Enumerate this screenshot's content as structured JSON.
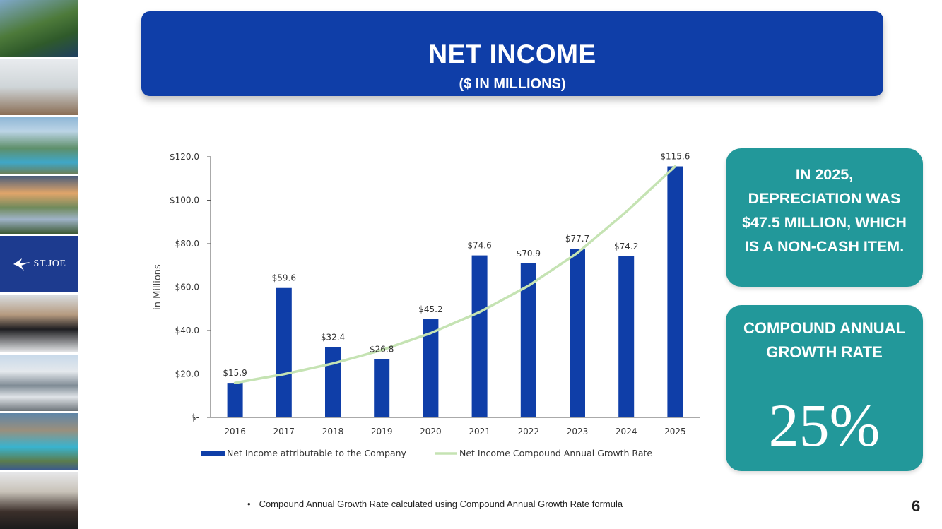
{
  "header": {
    "title": "NET INCOME",
    "subtitle": "($ IN MILLIONS)"
  },
  "logo": {
    "text": "ST.JOE"
  },
  "chart_data": {
    "type": "bar",
    "categories": [
      "2016",
      "2017",
      "2018",
      "2019",
      "2020",
      "2021",
      "2022",
      "2023",
      "2024",
      "2025"
    ],
    "series": [
      {
        "name": "Net Income attributable to the Company",
        "type": "bar",
        "color": "#0f3ea8",
        "values": [
          15.9,
          59.6,
          32.4,
          26.8,
          45.2,
          74.6,
          70.9,
          77.7,
          74.2,
          115.6
        ],
        "labels": [
          "$15.9",
          "$59.6",
          "$32.4",
          "$26.8",
          "$45.2",
          "$74.6",
          "$70.9",
          "$77.7",
          "$74.2",
          "$115.6"
        ]
      },
      {
        "name": "Net Income Compound Annual Growth Rate",
        "type": "line",
        "color": "#c5e3b3",
        "values": [
          15.9,
          19.9,
          24.8,
          31.0,
          38.8,
          48.5,
          60.6,
          75.7,
          94.7,
          115.6
        ]
      }
    ],
    "ylabel": "in Millions",
    "ylim": [
      0,
      120
    ],
    "yticks": [
      0,
      20,
      40,
      60,
      80,
      100,
      120
    ],
    "ytick_labels": [
      "$-",
      "$20.0",
      "$40.0",
      "$60.0",
      "$80.0",
      "$100.0",
      "$120.0"
    ],
    "grid": false,
    "legend_position": "bottom"
  },
  "callouts": {
    "depreciation": "IN 2025, DEPRECIATION WAS $47.5 MILLION, WHICH IS A NON-CASH ITEM.",
    "cagr_label": "COMPOUND ANNUAL GROWTH RATE",
    "cagr_value": "25%"
  },
  "footnote": "Compound Annual Growth Rate calculated using Compound Annual Growth Rate formula",
  "page_number": "6"
}
